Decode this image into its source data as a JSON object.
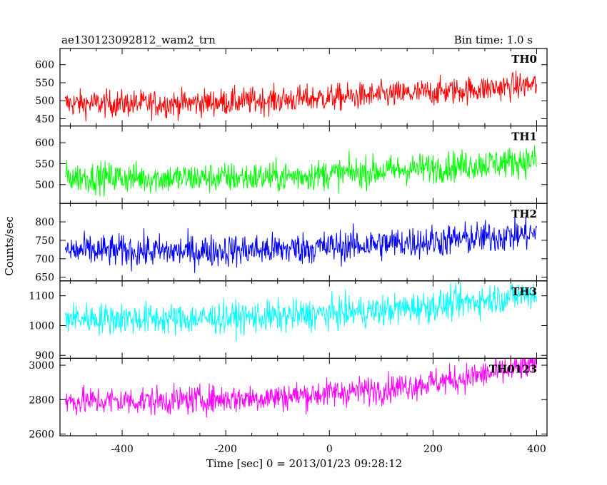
{
  "header": {
    "title": "ae130123092812_wam2_trn",
    "bin_time": "Bin time: 1.0 s"
  },
  "chart_data": {
    "type": "line",
    "title": "ae130123092812_wam2_trn",
    "subtitle": "Bin time: 1.0 s",
    "xlabel": "Time [sec] 0 = 2013/01/23 09:28:12",
    "ylabel": "Counts/sec",
    "xlim": [
      -520,
      420
    ],
    "x_ticks": [
      -400,
      -200,
      0,
      200,
      400
    ],
    "x_range_data": [
      -510,
      400
    ],
    "bin_time_s": 1.0,
    "grid": false,
    "panels": [
      {
        "name": "TH0",
        "color": "#ff0000",
        "ylim": [
          430,
          645
        ],
        "y_ticks": [
          450,
          500,
          550,
          600
        ],
        "trend": [
          {
            "x": -510,
            "y": 492
          },
          {
            "x": -300,
            "y": 492
          },
          {
            "x": -100,
            "y": 502
          },
          {
            "x": 100,
            "y": 515
          },
          {
            "x": 250,
            "y": 528
          },
          {
            "x": 400,
            "y": 545
          }
        ],
        "noise_amp": 34
      },
      {
        "name": "TH1",
        "color": "#00ff00",
        "ylim": [
          455,
          640
        ],
        "y_ticks": [
          500,
          550,
          600
        ],
        "trend": [
          {
            "x": -510,
            "y": 518
          },
          {
            "x": -300,
            "y": 515
          },
          {
            "x": -100,
            "y": 518
          },
          {
            "x": 100,
            "y": 532
          },
          {
            "x": 250,
            "y": 545
          },
          {
            "x": 400,
            "y": 558
          }
        ],
        "noise_amp": 33
      },
      {
        "name": "TH2",
        "color": "#0000ff",
        "ylim": [
          640,
          850
        ],
        "y_ticks": [
          650,
          700,
          750,
          800
        ],
        "trend": [
          {
            "x": -510,
            "y": 722
          },
          {
            "x": -300,
            "y": 720
          },
          {
            "x": -100,
            "y": 725
          },
          {
            "x": 100,
            "y": 740
          },
          {
            "x": 250,
            "y": 752
          },
          {
            "x": 400,
            "y": 768
          }
        ],
        "noise_amp": 40
      },
      {
        "name": "TH3",
        "color": "#00ffff",
        "ylim": [
          890,
          1150
        ],
        "y_ticks": [
          900,
          1000,
          1100
        ],
        "trend": [
          {
            "x": -510,
            "y": 1025
          },
          {
            "x": -300,
            "y": 1022
          },
          {
            "x": -100,
            "y": 1030
          },
          {
            "x": 100,
            "y": 1050
          },
          {
            "x": 250,
            "y": 1075
          },
          {
            "x": 400,
            "y": 1110
          }
        ],
        "noise_amp": 48
      },
      {
        "name": "TH0123",
        "color": "#ff00ff",
        "ylim": [
          2590,
          3040
        ],
        "y_ticks": [
          2600,
          2800,
          3000
        ],
        "trend": [
          {
            "x": -510,
            "y": 2790
          },
          {
            "x": -300,
            "y": 2795
          },
          {
            "x": -100,
            "y": 2815
          },
          {
            "x": 100,
            "y": 2860
          },
          {
            "x": 250,
            "y": 2920
          },
          {
            "x": 400,
            "y": 3000
          }
        ],
        "noise_amp": 75
      }
    ]
  }
}
